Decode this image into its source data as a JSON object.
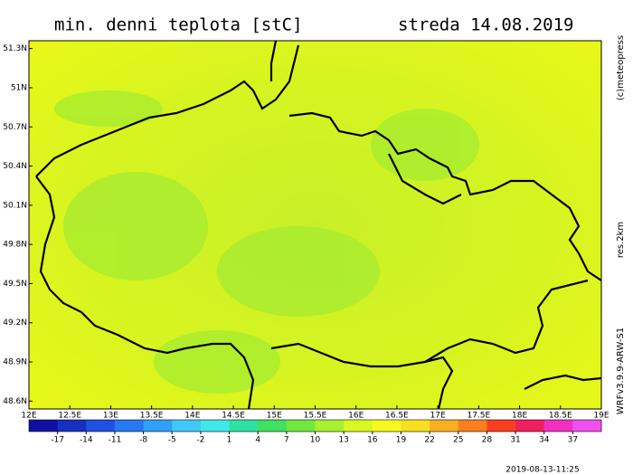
{
  "chart_data": {
    "type": "map",
    "title": "min. denni teplota [stC]",
    "date": "streda 14.08.2019",
    "xlim": [
      12,
      19
    ],
    "ylim": [
      48.54,
      51.36
    ],
    "xticks": [
      {
        "value": 12,
        "label": "12E"
      },
      {
        "value": 12.5,
        "label": "12.5E"
      },
      {
        "value": 13,
        "label": "13E"
      },
      {
        "value": 13.5,
        "label": "13.5E"
      },
      {
        "value": 14,
        "label": "14E"
      },
      {
        "value": 14.5,
        "label": "14.5E"
      },
      {
        "value": 15,
        "label": "15E"
      },
      {
        "value": 15.5,
        "label": "15.5E"
      },
      {
        "value": 16,
        "label": "16E"
      },
      {
        "value": 16.5,
        "label": "16.5E"
      },
      {
        "value": 17,
        "label": "17E"
      },
      {
        "value": 17.5,
        "label": "17.5E"
      },
      {
        "value": 18,
        "label": "18E"
      },
      {
        "value": 18.5,
        "label": "18.5E"
      },
      {
        "value": 19,
        "label": "19E"
      }
    ],
    "yticks": [
      {
        "value": 51.3,
        "label": "51.3N"
      },
      {
        "value": 51,
        "label": "51N"
      },
      {
        "value": 50.7,
        "label": "50.7N"
      },
      {
        "value": 50.4,
        "label": "50.4N"
      },
      {
        "value": 50.1,
        "label": "50.1N"
      },
      {
        "value": 49.8,
        "label": "49.8N"
      },
      {
        "value": 49.5,
        "label": "49.5N"
      },
      {
        "value": 49.2,
        "label": "49.2N"
      },
      {
        "value": 48.9,
        "label": "48.9N"
      },
      {
        "value": 48.6,
        "label": "48.6N"
      }
    ],
    "colorbar": {
      "lim": [
        -20,
        40
      ],
      "ticks": [
        -17,
        -14,
        -11,
        -8,
        -5,
        -2,
        1,
        4,
        7,
        10,
        13,
        16,
        19,
        22,
        25,
        28,
        31,
        34,
        37
      ],
      "colors": [
        "#1010a0",
        "#1830c0",
        "#2050e0",
        "#2878f0",
        "#30a0f8",
        "#40c8f8",
        "#40e8e8",
        "#30e0a0",
        "#40e060",
        "#70e840",
        "#a8f030",
        "#d8f820",
        "#f8f820",
        "#f8e020",
        "#f8b020",
        "#f88020",
        "#f84020",
        "#f02060",
        "#f030c0",
        "#f050f0"
      ]
    },
    "credit": "(c)meteopress",
    "resolution": "res.2km",
    "model": "WRFv3.9.9-ARW-S1",
    "timestamp": "2019-08-13-11:25"
  }
}
